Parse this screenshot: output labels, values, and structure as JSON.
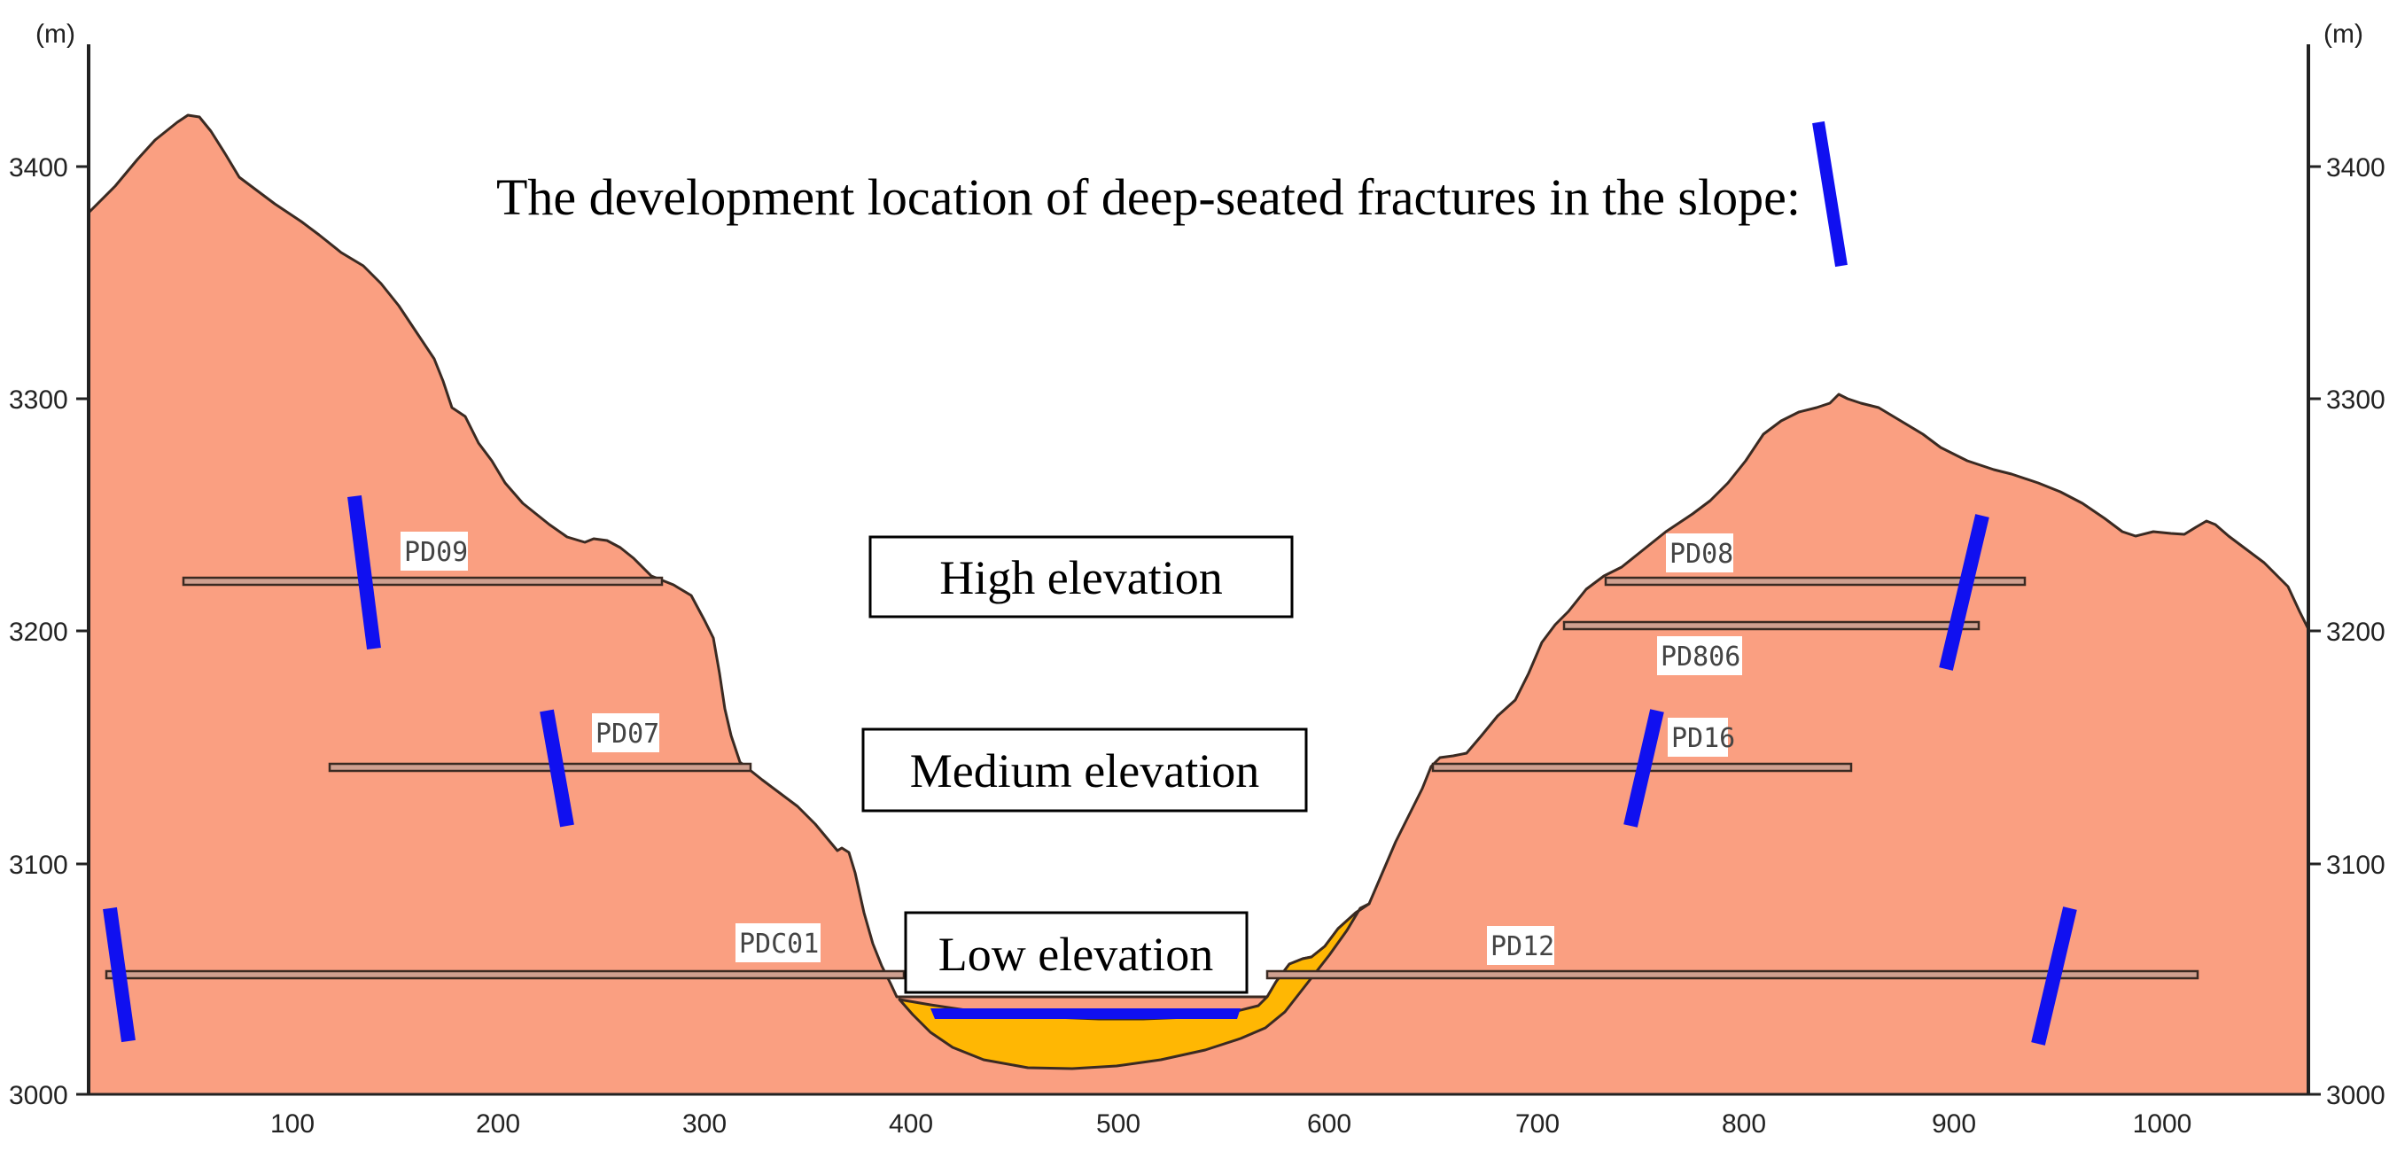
{
  "axis": {
    "unit_left": "(m)",
    "unit_right": "(m)",
    "y_ticks": [
      "3000",
      "3100",
      "3200",
      "3300",
      "3400"
    ],
    "x_ticks": [
      "100",
      "200",
      "300",
      "400",
      "500",
      "600",
      "700",
      "800",
      "900",
      "1000"
    ]
  },
  "legend": {
    "text": "The development location of deep-seated fractures in the slope:"
  },
  "zones": {
    "high": "High elevation",
    "medium": "Medium elevation",
    "low": "Low elevation"
  },
  "adits": {
    "pd09": "PD09",
    "pd07": "PD07",
    "pdc01": "PDC01",
    "pd08": "PD08",
    "pd806": "PD806",
    "pd16": "PD16",
    "pd12": "PD12"
  },
  "colors": {
    "rock": "#FA9F81",
    "deposit": "#FFB703",
    "water": "#1010F0",
    "fracture": "#1010F0",
    "outline": "#3A2A22"
  }
}
